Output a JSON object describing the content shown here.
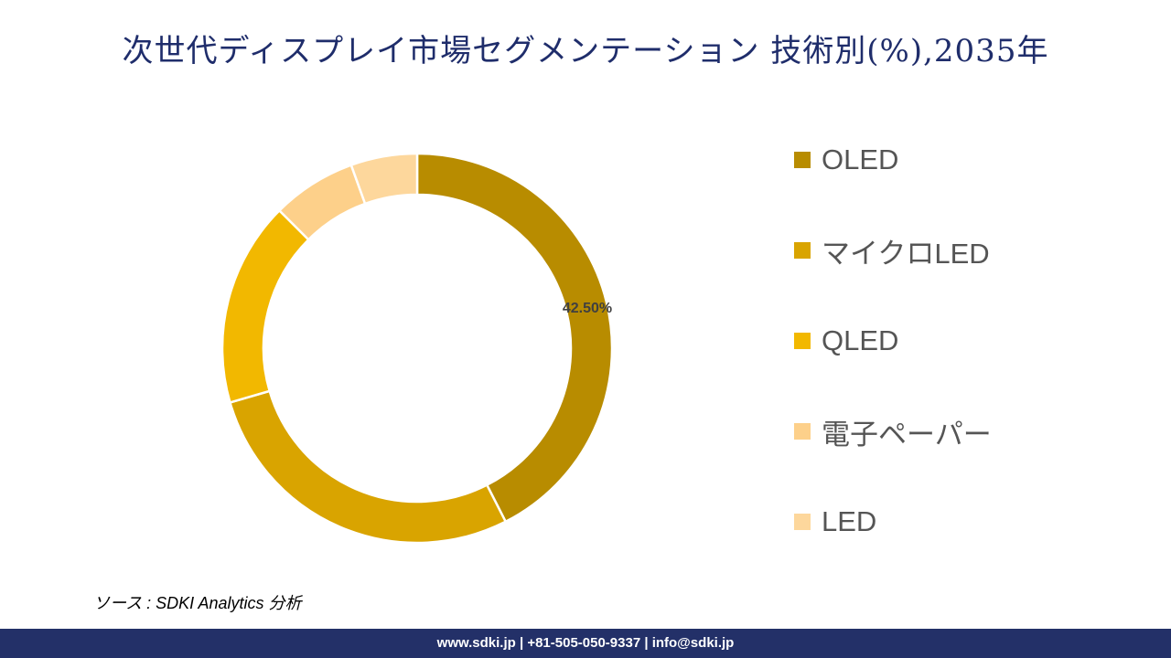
{
  "chart_data": {
    "type": "pie",
    "variant": "donut",
    "title": "次世代ディスプレイ市場セグメンテーション 技術別(%),2035年",
    "categories": [
      "OLED",
      "マイクロLED",
      "QLED",
      "電子ペーパー",
      "LED"
    ],
    "values": [
      42.5,
      28,
      17,
      7,
      5.5
    ],
    "colors": [
      "#B88C00",
      "#D9A400",
      "#F2B800",
      "#FDD08A",
      "#FDD79C"
    ],
    "data_labels": [
      "42.50%",
      "",
      "",
      "",
      ""
    ],
    "legend_position": "right"
  },
  "source": "ソース : SDKI Analytics 分析",
  "footer": "www.sdki.jp | +81-505-050-9337 | info@sdki.jp"
}
